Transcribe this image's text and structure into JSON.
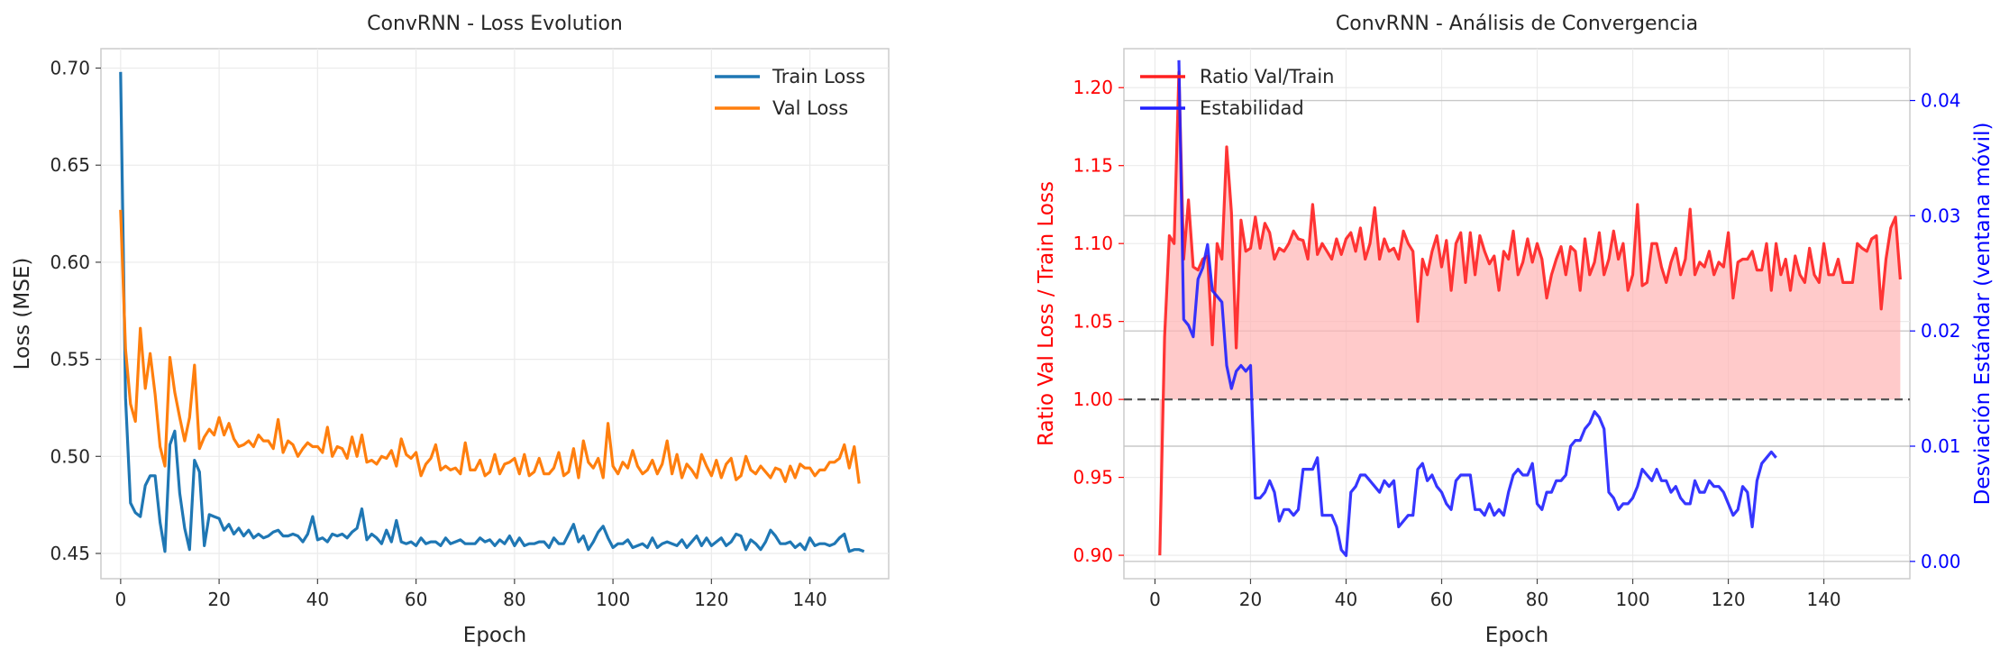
{
  "chart_data": [
    {
      "type": "line",
      "title": "ConvRNN - Loss Evolution",
      "xlabel": "Epoch",
      "ylabel": "Loss (MSE)",
      "xlim": [
        -4,
        156
      ],
      "ylim": [
        0.437,
        0.71
      ],
      "xticks": [
        0,
        20,
        40,
        60,
        80,
        100,
        120,
        140
      ],
      "yticks": [
        0.45,
        0.5,
        0.55,
        0.6,
        0.65,
        0.7
      ],
      "ytick_labels": [
        "0.45",
        "0.50",
        "0.55",
        "0.60",
        "0.65",
        "0.70"
      ],
      "grid": true,
      "legend_position": "top-right",
      "series": [
        {
          "name": "Train Loss",
          "color": "#1f77b4",
          "x_start": 0,
          "values": [
            0.698,
            0.53,
            0.476,
            0.471,
            0.469,
            0.485,
            0.49,
            0.49,
            0.466,
            0.451,
            0.506,
            0.513,
            0.481,
            0.463,
            0.452,
            0.498,
            0.492,
            0.454,
            0.47,
            0.469,
            0.468,
            0.462,
            0.465,
            0.46,
            0.463,
            0.459,
            0.462,
            0.458,
            0.46,
            0.458,
            0.459,
            0.461,
            0.462,
            0.459,
            0.459,
            0.46,
            0.459,
            0.456,
            0.46,
            0.469,
            0.457,
            0.458,
            0.456,
            0.46,
            0.459,
            0.46,
            0.458,
            0.461,
            0.463,
            0.473,
            0.457,
            0.46,
            0.458,
            0.455,
            0.462,
            0.456,
            0.467,
            0.456,
            0.455,
            0.456,
            0.454,
            0.458,
            0.455,
            0.456,
            0.456,
            0.454,
            0.458,
            0.455,
            0.456,
            0.457,
            0.455,
            0.455,
            0.455,
            0.458,
            0.456,
            0.457,
            0.454,
            0.457,
            0.455,
            0.459,
            0.454,
            0.458,
            0.454,
            0.455,
            0.455,
            0.456,
            0.456,
            0.453,
            0.458,
            0.455,
            0.455,
            0.46,
            0.465,
            0.456,
            0.459,
            0.452,
            0.456,
            0.461,
            0.464,
            0.458,
            0.453,
            0.455,
            0.455,
            0.457,
            0.453,
            0.454,
            0.455,
            0.453,
            0.458,
            0.453,
            0.455,
            0.456,
            0.455,
            0.454,
            0.457,
            0.453,
            0.456,
            0.459,
            0.454,
            0.458,
            0.454,
            0.456,
            0.458,
            0.454,
            0.456,
            0.46,
            0.459,
            0.452,
            0.457,
            0.455,
            0.452,
            0.456,
            0.462,
            0.459,
            0.455,
            0.455,
            0.456,
            0.453,
            0.455,
            0.452,
            0.458,
            0.454,
            0.455,
            0.455,
            0.454,
            0.455,
            0.458,
            0.46,
            0.451,
            0.452,
            0.452,
            0.451
          ]
        },
        {
          "name": "Val Loss",
          "color": "#ff7f0e",
          "x_start": 0,
          "values": [
            0.627,
            0.555,
            0.527,
            0.518,
            0.566,
            0.535,
            0.553,
            0.532,
            0.505,
            0.495,
            0.551,
            0.533,
            0.52,
            0.508,
            0.52,
            0.547,
            0.504,
            0.51,
            0.514,
            0.511,
            0.52,
            0.511,
            0.517,
            0.509,
            0.505,
            0.506,
            0.508,
            0.505,
            0.511,
            0.508,
            0.508,
            0.504,
            0.519,
            0.502,
            0.508,
            0.506,
            0.5,
            0.504,
            0.507,
            0.505,
            0.505,
            0.502,
            0.515,
            0.5,
            0.505,
            0.504,
            0.499,
            0.51,
            0.5,
            0.511,
            0.497,
            0.498,
            0.496,
            0.5,
            0.499,
            0.503,
            0.495,
            0.509,
            0.501,
            0.499,
            0.502,
            0.49,
            0.496,
            0.499,
            0.506,
            0.493,
            0.495,
            0.493,
            0.494,
            0.491,
            0.507,
            0.493,
            0.493,
            0.498,
            0.49,
            0.492,
            0.501,
            0.491,
            0.496,
            0.497,
            0.499,
            0.491,
            0.501,
            0.49,
            0.492,
            0.499,
            0.491,
            0.491,
            0.494,
            0.502,
            0.49,
            0.492,
            0.504,
            0.489,
            0.508,
            0.497,
            0.494,
            0.499,
            0.489,
            0.517,
            0.495,
            0.491,
            0.497,
            0.494,
            0.503,
            0.495,
            0.491,
            0.493,
            0.498,
            0.491,
            0.496,
            0.508,
            0.491,
            0.501,
            0.489,
            0.496,
            0.493,
            0.489,
            0.501,
            0.495,
            0.49,
            0.498,
            0.489,
            0.496,
            0.499,
            0.488,
            0.49,
            0.5,
            0.493,
            0.491,
            0.495,
            0.492,
            0.489,
            0.494,
            0.493,
            0.487,
            0.495,
            0.489,
            0.496,
            0.494,
            0.494,
            0.49,
            0.493,
            0.493,
            0.497,
            0.497,
            0.499,
            0.506,
            0.494,
            0.505,
            0.486
          ]
        }
      ]
    },
    {
      "type": "line",
      "title": "ConvRNN - Análisis de Convergencia",
      "xlabel": "Epoch",
      "ylabel": "Ratio Val Loss / Train Loss",
      "ylabel_right": "Desviación Estándar (ventana móvil)",
      "xlim": [
        -6.5,
        158
      ],
      "ylim": [
        0.885,
        1.225
      ],
      "ylim_right": [
        -0.0015,
        0.0445
      ],
      "xticks": [
        0,
        20,
        40,
        60,
        80,
        100,
        120,
        140
      ],
      "yticks": [
        0.9,
        0.95,
        1.0,
        1.05,
        1.1,
        1.15,
        1.2
      ],
      "ytick_labels": [
        "0.90",
        "0.95",
        "1.00",
        "1.05",
        "1.10",
        "1.15",
        "1.20"
      ],
      "yticks_right": [
        0.0,
        0.01,
        0.02,
        0.03,
        0.04
      ],
      "ytick_labels_right": [
        "0.00",
        "0.01",
        "0.02",
        "0.03",
        "0.04"
      ],
      "grid": true,
      "legend_position": "top-left",
      "reference_line": {
        "y": 1.0,
        "style": "dashed",
        "color": "#555555"
      },
      "fill_between": {
        "baseline": 1.0,
        "series": "Ratio Val/Train",
        "color": "#ffb3b3"
      },
      "series": [
        {
          "name": "Ratio Val/Train",
          "color": "#ff2020",
          "axis": "left",
          "x_start": 1,
          "values": [
            0.9,
            1.04,
            1.105,
            1.1,
            1.21,
            1.09,
            1.128,
            1.085,
            1.083,
            1.09,
            1.092,
            1.035,
            1.1,
            1.09,
            1.162,
            1.12,
            1.033,
            1.115,
            1.095,
            1.097,
            1.117,
            1.097,
            1.113,
            1.107,
            1.09,
            1.097,
            1.095,
            1.1,
            1.108,
            1.103,
            1.102,
            1.09,
            1.125,
            1.093,
            1.1,
            1.095,
            1.09,
            1.103,
            1.093,
            1.103,
            1.107,
            1.095,
            1.11,
            1.09,
            1.1,
            1.123,
            1.09,
            1.103,
            1.095,
            1.097,
            1.09,
            1.108,
            1.1,
            1.095,
            1.05,
            1.09,
            1.08,
            1.095,
            1.105,
            1.085,
            1.102,
            1.07,
            1.1,
            1.107,
            1.075,
            1.107,
            1.08,
            1.105,
            1.095,
            1.087,
            1.092,
            1.07,
            1.095,
            1.09,
            1.108,
            1.08,
            1.088,
            1.103,
            1.088,
            1.1,
            1.09,
            1.065,
            1.08,
            1.09,
            1.098,
            1.08,
            1.098,
            1.095,
            1.07,
            1.103,
            1.08,
            1.088,
            1.107,
            1.08,
            1.09,
            1.108,
            1.09,
            1.1,
            1.07,
            1.08,
            1.125,
            1.073,
            1.075,
            1.1,
            1.1,
            1.085,
            1.075,
            1.088,
            1.097,
            1.08,
            1.09,
            1.122,
            1.08,
            1.088,
            1.085,
            1.095,
            1.08,
            1.088,
            1.085,
            1.107,
            1.065,
            1.088,
            1.09,
            1.09,
            1.095,
            1.083,
            1.083,
            1.1,
            1.07,
            1.1,
            1.08,
            1.09,
            1.07,
            1.092,
            1.08,
            1.075,
            1.097,
            1.08,
            1.075,
            1.1,
            1.08,
            1.08,
            1.09,
            1.075,
            1.075,
            1.075,
            1.1,
            1.097,
            1.095,
            1.103,
            1.105,
            1.058,
            1.09,
            1.11,
            1.117,
            1.077
          ]
        },
        {
          "name": "Estabilidad",
          "color": "#2020ff",
          "axis": "right",
          "x_start": 5,
          "values": [
            0.0435,
            0.021,
            0.0205,
            0.0195,
            0.0245,
            0.0255,
            0.0275,
            0.0235,
            0.023,
            0.0225,
            0.017,
            0.015,
            0.0165,
            0.017,
            0.0165,
            0.017,
            0.0055,
            0.0055,
            0.006,
            0.007,
            0.006,
            0.0035,
            0.0045,
            0.0045,
            0.004,
            0.0045,
            0.008,
            0.008,
            0.008,
            0.009,
            0.004,
            0.004,
            0.004,
            0.003,
            0.001,
            0.0005,
            0.006,
            0.0065,
            0.0075,
            0.0075,
            0.007,
            0.0065,
            0.006,
            0.007,
            0.0065,
            0.007,
            0.003,
            0.0035,
            0.004,
            0.004,
            0.008,
            0.0085,
            0.007,
            0.0075,
            0.0065,
            0.006,
            0.005,
            0.0045,
            0.007,
            0.0075,
            0.0075,
            0.0075,
            0.0045,
            0.0045,
            0.004,
            0.005,
            0.004,
            0.0045,
            0.004,
            0.006,
            0.0075,
            0.008,
            0.0075,
            0.0075,
            0.0085,
            0.005,
            0.0045,
            0.006,
            0.006,
            0.007,
            0.007,
            0.0075,
            0.01,
            0.0105,
            0.0105,
            0.0115,
            0.012,
            0.013,
            0.0125,
            0.0115,
            0.006,
            0.0055,
            0.0045,
            0.005,
            0.005,
            0.0055,
            0.0065,
            0.008,
            0.0075,
            0.007,
            0.008,
            0.007,
            0.007,
            0.006,
            0.0065,
            0.0055,
            0.005,
            0.005,
            0.007,
            0.006,
            0.006,
            0.007,
            0.0065,
            0.0065,
            0.006,
            0.005,
            0.004,
            0.0045,
            0.0065,
            0.006,
            0.003,
            0.007,
            0.0085,
            0.009,
            0.0095,
            0.009
          ]
        }
      ]
    }
  ]
}
